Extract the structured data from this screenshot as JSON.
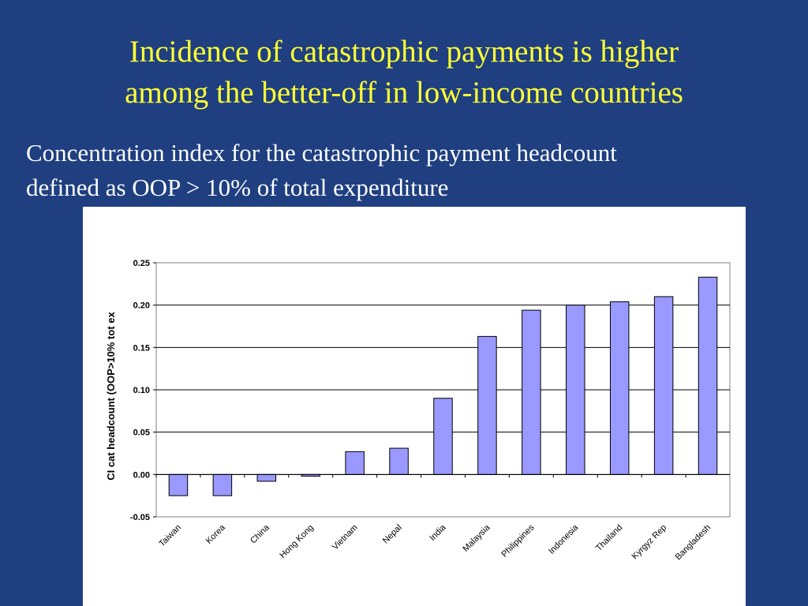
{
  "slide": {
    "title_line1": "Incidence of catastrophic payments is higher",
    "title_line2": "among the better-off in low-income countries",
    "subtitle_line1": "Concentration index for the catastrophic payment headcount",
    "subtitle_line2": "defined as OOP > 10% of total expenditure"
  },
  "colors": {
    "background": "#1f3f80",
    "title": "#ffff33",
    "bar_fill": "#9999ff"
  },
  "chart_data": {
    "type": "bar",
    "categories": [
      "Taiwan",
      "Korea",
      "China",
      "Hong Kong",
      "Vietnam",
      "Nepal",
      "India",
      "Malaysia",
      "Philippines",
      "Indonesia",
      "Thailand",
      "Kyrgyz Rep",
      "Bangladesh"
    ],
    "values": [
      -0.025,
      -0.025,
      -0.008,
      -0.002,
      0.027,
      0.031,
      0.09,
      0.163,
      0.194,
      0.2,
      0.204,
      0.21,
      0.233
    ],
    "ylabel": "CI cat headcount (OOP>10% tot ex",
    "xlabel": "",
    "ylim": [
      -0.05,
      0.25
    ],
    "yticks": [
      0.25,
      0.2,
      0.15,
      0.1,
      0.05,
      0.0,
      -0.05
    ],
    "ytick_labels": [
      "0.25",
      "0.20",
      "0.15",
      "0.10",
      "0.05",
      "0.00",
      "-0.05"
    ],
    "grid": true,
    "legend": false
  }
}
